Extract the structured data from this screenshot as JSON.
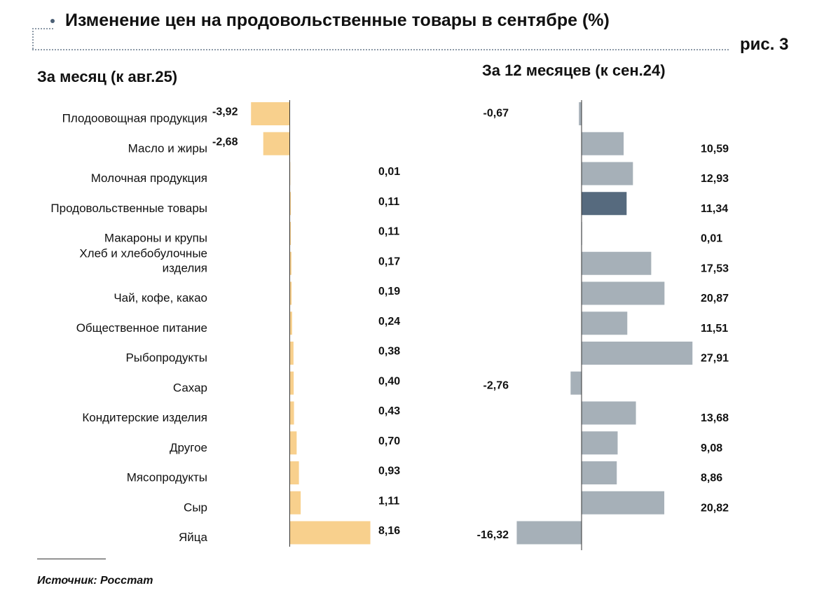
{
  "title": "Изменение цен на продовольственные товары в сентябре (%)",
  "figure_label": "рис. 3",
  "source": "Источник: Росстат",
  "colors": {
    "left_bar": "#f8d08d",
    "right_bar": "#a6b0b8",
    "right_highlight": "#566a7e",
    "axis": "#333333"
  },
  "chart_data": [
    {
      "type": "bar",
      "orientation": "horizontal",
      "title": "За месяц (к авг.25)",
      "categories": [
        "Плодоовощная продукция",
        "Масло и жиры",
        "Молочная продукция",
        "Продовольственные товары",
        "Макароны и крупы",
        "Хлеб и хлебобулочные изделия",
        "Чай, кофе, какао",
        "Общественное питание",
        "Рыбопродукты",
        "Сахар",
        "Кондитерские изделия",
        "Другое",
        "Мясопродукты",
        "Сыр",
        "Яйца"
      ],
      "category_lines": [
        [
          "Плодоовощная продукция"
        ],
        [
          "Масло и жиры"
        ],
        [
          "Молочная продукция"
        ],
        [
          "Продовольственные товары"
        ],
        [
          "Макароны и крупы"
        ],
        [
          "Хлеб и хлебобулочные",
          "изделия"
        ],
        [
          "Чай, кофе, какао"
        ],
        [
          "Общественное питание"
        ],
        [
          "Рыбопродукты"
        ],
        [
          "Сахар"
        ],
        [
          "Кондитерские изделия"
        ],
        [
          "Другое"
        ],
        [
          "Мясопродукты"
        ],
        [
          "Сыр"
        ],
        [
          "Яйца"
        ]
      ],
      "values": [
        -3.92,
        -2.68,
        0.01,
        0.11,
        0.11,
        0.17,
        0.19,
        0.24,
        0.38,
        0.4,
        0.43,
        0.7,
        0.93,
        1.11,
        8.16
      ],
      "labels": [
        "-3,92",
        "-2,68",
        "0,01",
        "0,11",
        "0,11",
        "0,17",
        "0,19",
        "0,24",
        "0,38",
        "0,40",
        "0,43",
        "0,70",
        "0,93",
        "1,11",
        "8,16"
      ]
    },
    {
      "type": "bar",
      "orientation": "horizontal",
      "title": "За 12 месяцев (к сен.24)",
      "values": [
        -0.67,
        10.59,
        12.93,
        11.34,
        0.01,
        17.53,
        20.87,
        11.51,
        27.91,
        -2.76,
        13.68,
        9.08,
        8.86,
        20.82,
        -16.32
      ],
      "labels": [
        "-0,67",
        "10,59",
        "12,93",
        "11,34",
        "0,01",
        "17,53",
        "20,87",
        "11,51",
        "27,91",
        "-2,76",
        "13,68",
        "9,08",
        "8,86",
        "20,82",
        "-16,32"
      ],
      "highlight_index": 3
    }
  ]
}
